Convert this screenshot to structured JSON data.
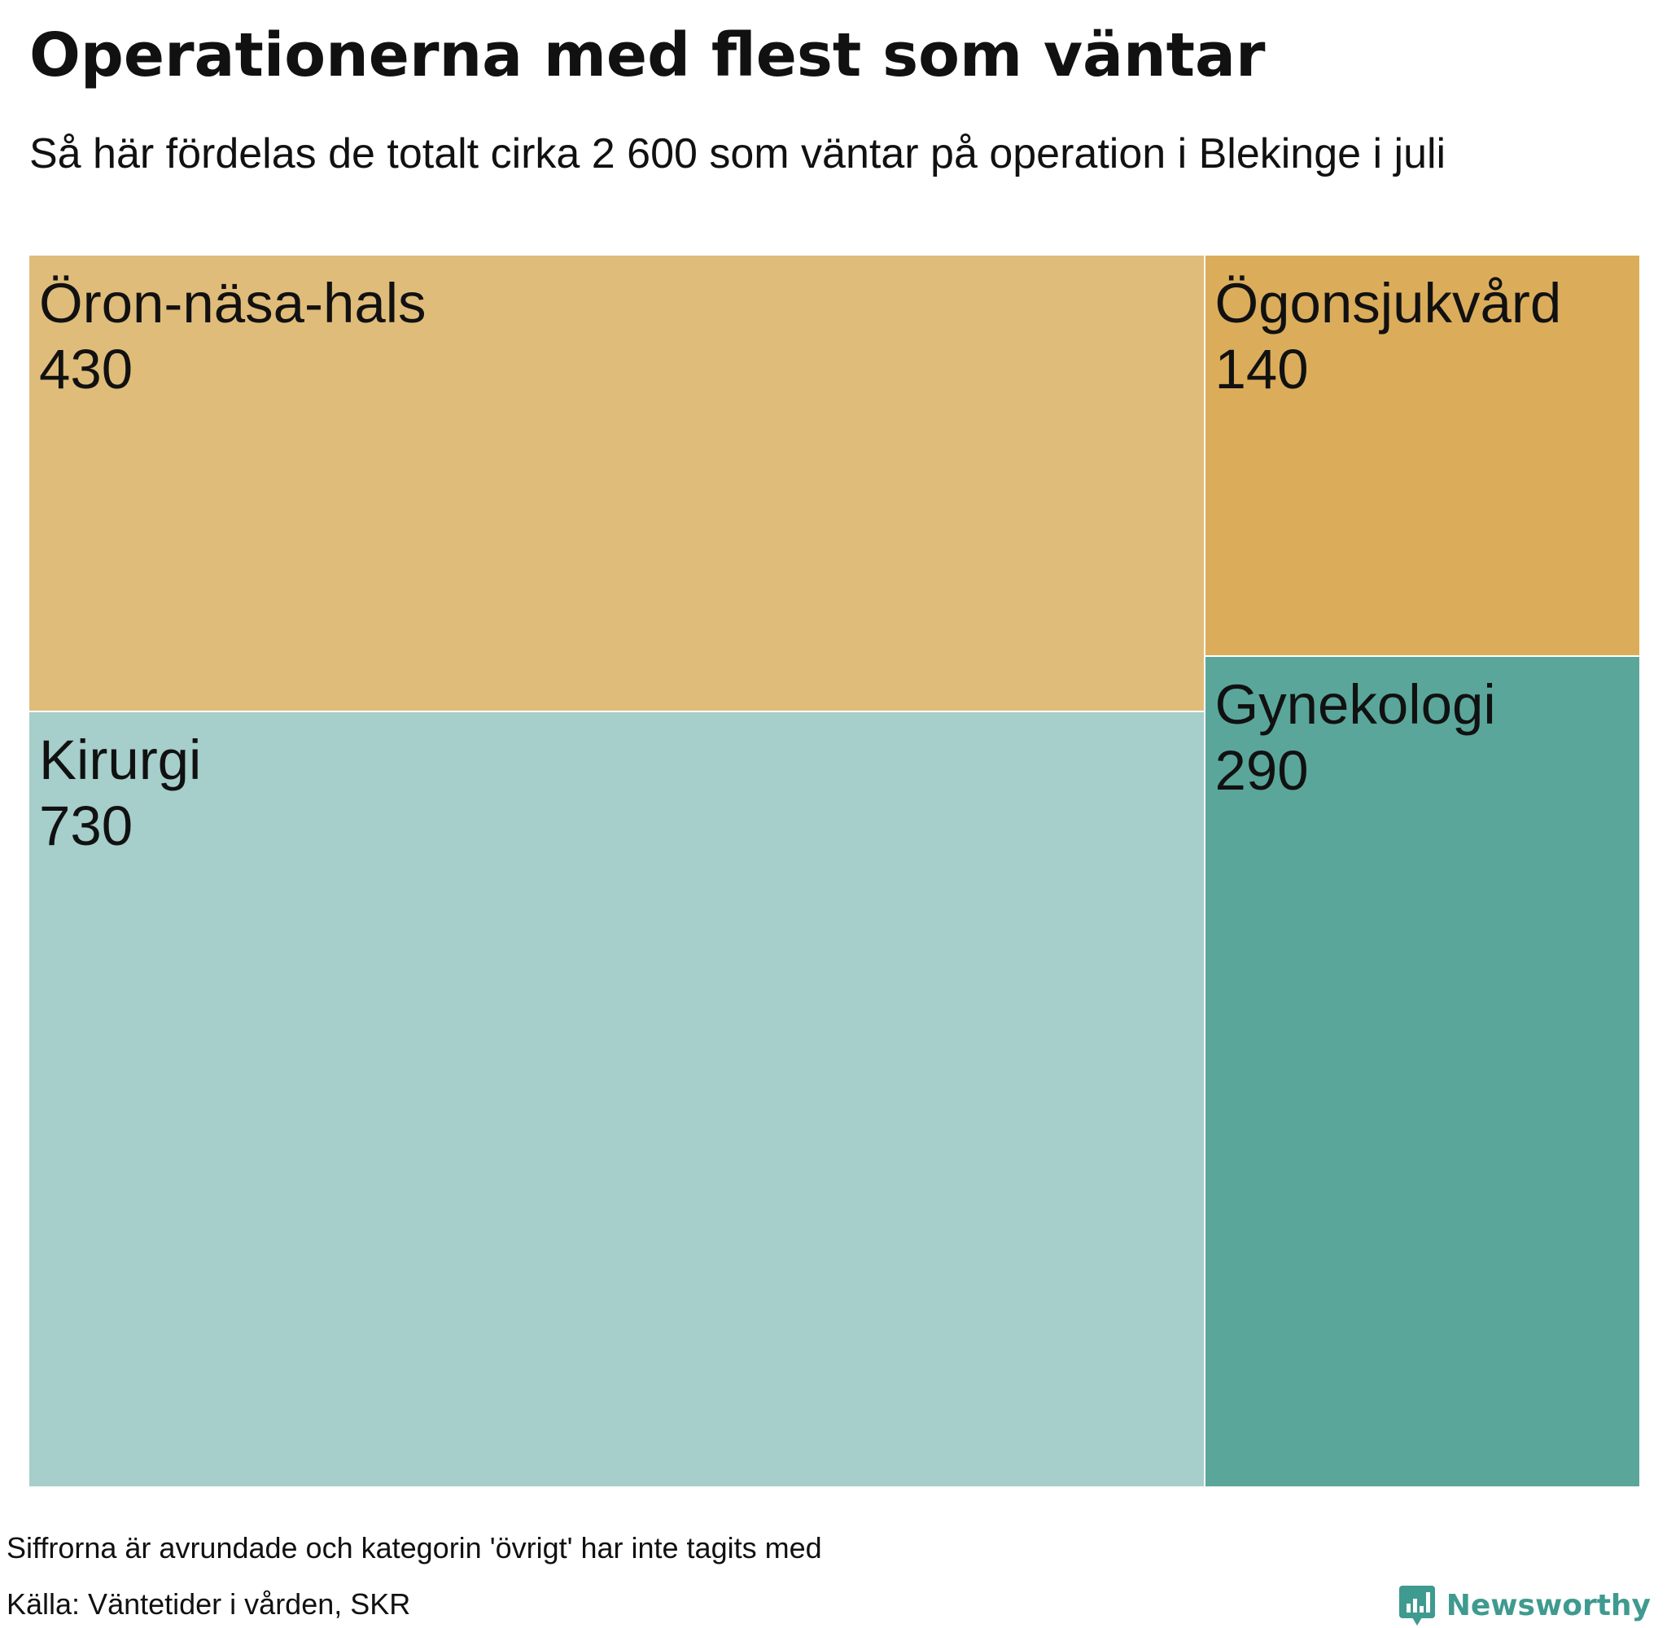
{
  "header": {
    "title": "Operationerna med flest som väntar",
    "subtitle": "Så här fördelas de totalt cirka 2 600 som väntar på operation i Blekinge i juli"
  },
  "chart_data": {
    "type": "treemap",
    "value_unit": "antal som väntar",
    "groups": [
      {
        "items": [
          {
            "label": "Öron-näsa-hals",
            "value": 430,
            "value_label": "430",
            "color": "#e0bc7a"
          },
          {
            "label": "Kirurgi",
            "value": 730,
            "value_label": "730",
            "color": "#a6cecb"
          }
        ]
      },
      {
        "items": [
          {
            "label": "Ögonsjukvård",
            "value": 140,
            "value_label": "140",
            "color": "#dbad5b"
          },
          {
            "label": "Gynekologi",
            "value": 290,
            "value_label": "290",
            "color": "#5aa69a"
          }
        ]
      }
    ]
  },
  "footer": {
    "note": "Siffrorna är avrundade och kategorin 'övrigt' har inte tagits med",
    "source": "Källa: Väntetider i vården, SKR",
    "brand": "Newsworthy",
    "brand_icon": "newsworthy-logo-icon",
    "brand_color": "#3f9a8f"
  }
}
